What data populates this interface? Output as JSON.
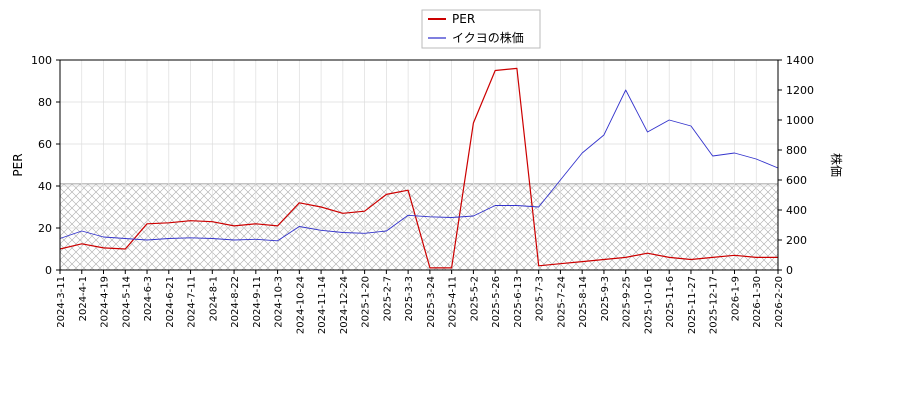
{
  "chart_data": {
    "type": "line",
    "xlabel": "",
    "ylabel_left": "PER",
    "ylabel_right": "株価",
    "ylim_left": [
      0,
      100
    ],
    "ylim_right": [
      0,
      1400
    ],
    "yticks_left": [
      0,
      20,
      40,
      60,
      80,
      100
    ],
    "yticks_right": [
      0,
      200,
      400,
      600,
      800,
      1000,
      1200,
      1400
    ],
    "x_tick_labels": [
      "2024-3-11",
      "2024-4-1",
      "2024-4-19",
      "2024-5-14",
      "2024-6-3",
      "2024-6-21",
      "2024-7-11",
      "2024-8-1",
      "2024-8-22",
      "2024-9-11",
      "2024-10-3",
      "2024-10-24",
      "2024-11-14",
      "2024-12-24",
      "2025-1-20",
      "2025-2-7",
      "2025-3-3",
      "2025-3-24",
      "2025-4-11",
      "2025-5-2",
      "2025-5-26",
      "2025-6-13",
      "2025-7-3",
      "2025-7-24",
      "2025-8-14",
      "2025-9-3",
      "2025-9-25",
      "2025-10-16",
      "2025-11-6",
      "2025-11-27",
      "2025-12-17",
      "2026-1-9",
      "2026-1-30",
      "2026-2-20"
    ],
    "shaded_region": {
      "axis": "left",
      "from": 0,
      "to": 41,
      "pattern": "crosshatch"
    },
    "grid": true,
    "legend_position": "top-center",
    "series": [
      {
        "name": "PER",
        "axis": "left",
        "color": "#cc0000",
        "x": [
          0,
          1,
          2,
          3,
          4,
          5,
          6,
          7,
          8,
          9,
          10,
          11,
          12,
          13,
          14,
          15,
          16,
          17,
          18,
          19,
          20,
          21,
          22,
          23,
          24,
          25,
          26,
          27,
          28,
          29,
          30,
          31,
          32,
          33
        ],
        "values": [
          10,
          12.5,
          10.5,
          10,
          22,
          22.5,
          23.5,
          23,
          21,
          22,
          21,
          32,
          30,
          27,
          28,
          36,
          38,
          1,
          1,
          70,
          95,
          96,
          2,
          3,
          4,
          5,
          6,
          8,
          6,
          5,
          6,
          7,
          6,
          6
        ]
      },
      {
        "name": "イクヨの株価",
        "axis": "right",
        "color": "#3333cc",
        "x": [
          0,
          1,
          2,
          3,
          4,
          5,
          6,
          7,
          8,
          9,
          10,
          11,
          12,
          13,
          14,
          15,
          16,
          17,
          18,
          19,
          20,
          21,
          22,
          23,
          24,
          25,
          26,
          27,
          28,
          29,
          30,
          31,
          32,
          33
        ],
        "values": [
          210,
          260,
          220,
          210,
          200,
          210,
          215,
          210,
          200,
          205,
          195,
          290,
          265,
          250,
          245,
          260,
          365,
          355,
          350,
          360,
          430,
          430,
          420,
          600,
          780,
          900,
          1200,
          920,
          1000,
          960,
          760,
          780,
          740,
          680
        ]
      }
    ]
  }
}
